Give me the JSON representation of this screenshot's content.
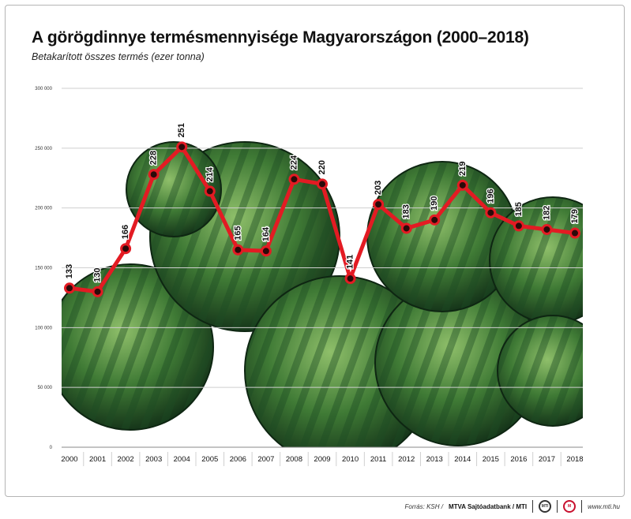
{
  "chart_data": {
    "type": "line",
    "title": "A görögdinnye termésmennyisége Magyarországon (2000–2018)",
    "subtitle": "Betakarított összes termés (ezer tonna)",
    "x": [
      "2000",
      "2001",
      "2002",
      "2003",
      "2004",
      "2005",
      "2006",
      "2007",
      "2008",
      "2009",
      "2010",
      "2011",
      "2012",
      "2013",
      "2014",
      "2015",
      "2016",
      "2017",
      "2018"
    ],
    "series": [
      {
        "values": [
          133,
          130,
          166,
          228,
          251,
          214,
          165,
          164,
          224,
          220,
          141,
          203,
          183,
          190,
          219,
          196,
          185,
          182,
          179
        ]
      }
    ],
    "data_labels": [
      "133",
      "130",
      "166",
      "228",
      "251",
      "214",
      "165",
      "164",
      "224",
      "220",
      "141",
      "203",
      "183",
      "190",
      "219",
      "196",
      "185",
      "182",
      "179"
    ],
    "y_tick_labels": [
      "0",
      "50 000",
      "100 000",
      "150 000",
      "200 000",
      "250 000",
      "300 000"
    ],
    "y_ticks": [
      0,
      50,
      100,
      150,
      200,
      250,
      300
    ],
    "ylim": [
      0,
      300
    ],
    "grid": true,
    "line_color": "#e31b23",
    "background": "watermelon photograph"
  },
  "footer": {
    "source_label": "Forrás: KSH / ",
    "agency": "MTVA Sajtóadatbank / MTI",
    "website": "www.mti.hu"
  }
}
